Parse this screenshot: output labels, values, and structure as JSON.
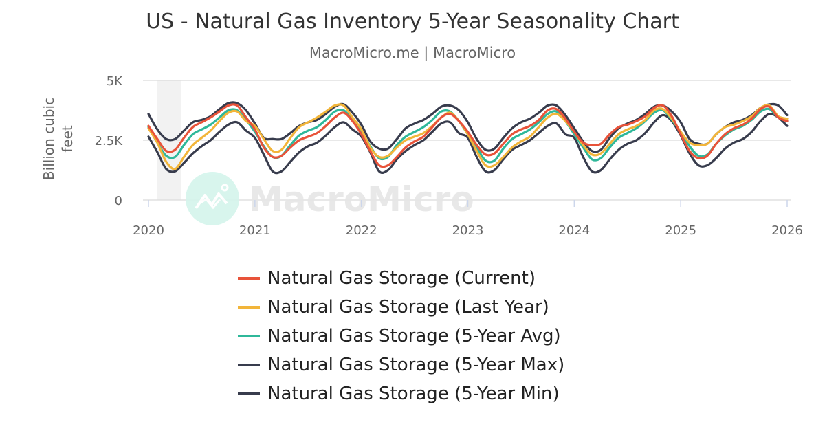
{
  "title": "US - Natural Gas Inventory 5-Year Seasonality Chart",
  "subtitle": "MacroMicro.me | MacroMicro",
  "watermark": "MacroMicro",
  "chart_data": {
    "type": "line",
    "title": "US - Natural Gas Inventory 5-Year Seasonality Chart",
    "ylabel": "Billion cubic feet",
    "ylim": [
      0,
      5000
    ],
    "yticks": [
      {
        "v": 0,
        "label": "0"
      },
      {
        "v": 2500,
        "label": "2.5K"
      },
      {
        "v": 5000,
        "label": "5K"
      }
    ],
    "xlim": [
      "2020-01",
      "2026-01"
    ],
    "xticks": [
      "2020",
      "2021",
      "2022",
      "2023",
      "2024",
      "2025",
      "2026"
    ],
    "grid": "horizontal",
    "legend_position": "bottom",
    "shaded_region": [
      "2020-02",
      "2020-04"
    ],
    "x_start": "2020-01",
    "x_frequency": "monthly",
    "series": [
      {
        "name": "Natural Gas Storage (5-Year Min)",
        "color": "#383c4d",
        "values": [
          2650,
          2000,
          1300,
          1200,
          1550,
          1950,
          2250,
          2500,
          2850,
          3150,
          3250,
          2900,
          2600,
          1900,
          1200,
          1200,
          1600,
          2000,
          2250,
          2400,
          2700,
          3050,
          3250,
          2950,
          2650,
          2000,
          1200,
          1250,
          1700,
          2050,
          2300,
          2500,
          2850,
          3200,
          3250,
          2800,
          2600,
          1800,
          1200,
          1250,
          1700,
          2100,
          2300,
          2500,
          2800,
          3100,
          3200,
          2750,
          2600,
          1800,
          1200,
          1250,
          1700,
          2100,
          2350,
          2500,
          2800,
          3250,
          3550,
          3300,
          2700,
          1950,
          1450,
          1450,
          1750,
          2150,
          2400,
          2550,
          2850,
          3300,
          3600,
          3450,
          3100
        ]
      },
      {
        "name": "Natural Gas Storage (5-Year Max)",
        "color": "#383c4d",
        "values": [
          3600,
          2950,
          2550,
          2550,
          2900,
          3250,
          3350,
          3500,
          3800,
          4050,
          4050,
          3750,
          3200,
          2600,
          2550,
          2550,
          2800,
          3100,
          3250,
          3350,
          3600,
          3900,
          4000,
          3650,
          3150,
          2450,
          2150,
          2150,
          2550,
          3000,
          3200,
          3350,
          3600,
          3900,
          3950,
          3750,
          3250,
          2550,
          2100,
          2150,
          2600,
          3000,
          3250,
          3400,
          3650,
          3950,
          3950,
          3550,
          3000,
          2450,
          2050,
          2100,
          2600,
          3000,
          3200,
          3350,
          3600,
          3900,
          3950,
          3700,
          3250,
          2550,
          2350,
          2350,
          2750,
          3050,
          3250,
          3350,
          3550,
          3850,
          4000,
          3950,
          3550
        ]
      },
      {
        "name": "Natural Gas Storage (5-Year Avg)",
        "color": "#2fb89a",
        "values": [
          3050,
          2400,
          1850,
          1800,
          2300,
          2750,
          2950,
          3150,
          3450,
          3750,
          3750,
          3350,
          2850,
          2250,
          1800,
          1850,
          2300,
          2700,
          2900,
          3050,
          3350,
          3700,
          3750,
          3350,
          2850,
          2250,
          1750,
          1800,
          2300,
          2650,
          2850,
          3050,
          3350,
          3700,
          3700,
          3300,
          2750,
          2200,
          1650,
          1650,
          2150,
          2550,
          2750,
          2950,
          3250,
          3600,
          3700,
          3300,
          2750,
          2200,
          1700,
          1750,
          2200,
          2600,
          2800,
          3000,
          3300,
          3650,
          3750,
          3350,
          2850,
          2250,
          1850,
          1900,
          2350,
          2700,
          2950,
          3100,
          3350,
          3700,
          3800,
          3450,
          3300
        ]
      },
      {
        "name": "Natural Gas Storage (Last Year)",
        "color": "#f2b53a",
        "values": [
          3000,
          2400,
          1600,
          1300,
          1800,
          2300,
          2600,
          2900,
          3300,
          3650,
          3700,
          3300,
          3100,
          2550,
          2050,
          2100,
          2600,
          3050,
          3250,
          3450,
          3700,
          3950,
          3950,
          3450,
          2950,
          2200,
          1800,
          1850,
          2200,
          2500,
          2650,
          2800,
          3100,
          3450,
          3650,
          3300,
          2750,
          2050,
          1450,
          1450,
          1800,
          2200,
          2450,
          2650,
          3050,
          3450,
          3600,
          3300,
          2850,
          2300,
          1900,
          1950,
          2350,
          2750,
          2950,
          3100,
          3350,
          3750,
          3800,
          3400,
          2850,
          2400,
          2300,
          2350,
          2750,
          3050,
          3150,
          3300,
          3500,
          3850,
          3950,
          3500,
          3400
        ]
      },
      {
        "name": "Natural Gas Storage (Current)",
        "color": "#e8533a",
        "values": [
          3100,
          2550,
          2050,
          2100,
          2600,
          3050,
          3250,
          3450,
          3700,
          3950,
          3950,
          3450,
          2950,
          2200,
          1800,
          1850,
          2200,
          2500,
          2650,
          2800,
          3100,
          3450,
          3650,
          3300,
          2750,
          2050,
          1450,
          1450,
          1800,
          2200,
          2450,
          2650,
          3050,
          3450,
          3600,
          3300,
          2850,
          2300,
          1900,
          1950,
          2350,
          2750,
          2950,
          3100,
          3350,
          3750,
          3800,
          3400,
          2850,
          2400,
          2300,
          2350,
          2750,
          3050,
          3150,
          3300,
          3500,
          3850,
          3950,
          3500,
          2750,
          2050,
          1750,
          1850,
          2350,
          2750,
          3000,
          3150,
          3400,
          3800,
          3900,
          3450,
          3300
        ]
      }
    ]
  },
  "legend": [
    {
      "label": "Natural Gas Storage (Current)",
      "color": "#e8533a"
    },
    {
      "label": "Natural Gas Storage (Last Year)",
      "color": "#f2b53a"
    },
    {
      "label": "Natural Gas Storage (5-Year Avg)",
      "color": "#2fb89a"
    },
    {
      "label": "Natural Gas Storage (5-Year Max)",
      "color": "#383c4d"
    },
    {
      "label": "Natural Gas Storage (5-Year Min)",
      "color": "#383c4d"
    }
  ]
}
